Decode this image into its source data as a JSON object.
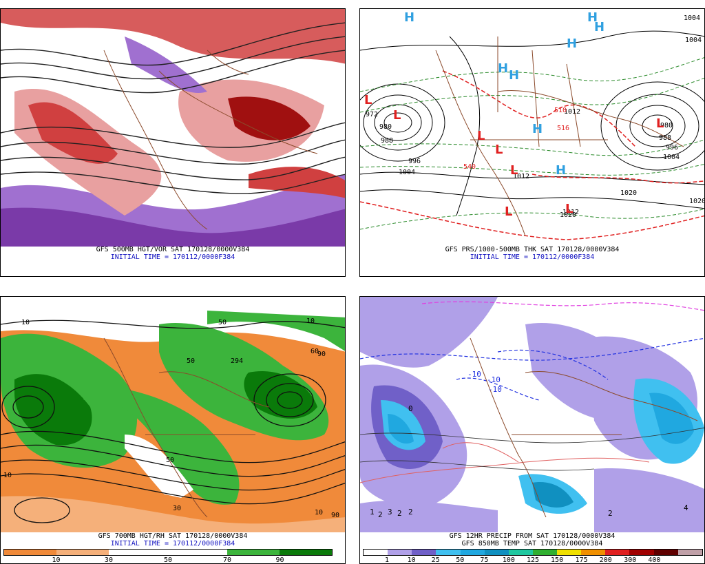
{
  "panels": {
    "vort": {
      "caption_line1": "GFS 500MB HGT/VOR SAT 170128/0000V384",
      "caption_line2": "INITIAL TIME = 170112/0000F384",
      "colors": [
        "#7a3aa8",
        "#a070d0",
        "#ffffff",
        "#e8a0a0",
        "#d04040",
        "#a01010"
      ]
    },
    "pressure": {
      "caption_line1": "GFS PRS/1000-500MB THK SAT 170128/0000V384",
      "caption_line2": "INITIAL TIME = 170112/0000F384",
      "labels": [
        "972",
        "980",
        "988",
        "996",
        "1004",
        "1012",
        "1020",
        "980",
        "988",
        "996",
        "1004",
        "1020",
        "1004",
        "1020",
        "1012",
        "1012",
        "510",
        "516",
        "540",
        "1004"
      ],
      "symbols": {
        "low": "L",
        "high": "H"
      }
    },
    "rh": {
      "caption_line1": "GFS 700MB HGT/RH SAT 170128/0000V384",
      "caption_line2": "INITIAL TIME = 170112/0000F384",
      "legend_colors": [
        "#f08a3a",
        "#f5b07a",
        "#ffffff",
        "#3cb43c",
        "#0a7a0a"
      ],
      "legend_ticks": [
        "10",
        "30",
        "50",
        "70",
        "90"
      ],
      "labels": [
        "10",
        "10",
        "50",
        "294",
        "50",
        "60",
        "10",
        "30",
        "50",
        "90",
        "90",
        "10"
      ]
    },
    "precip": {
      "caption_line1": "GFS 12HR PRECIP FROM SAT 170128/0000V384",
      "caption_line2": "GFS 850MB TEMP SAT 170128/0000V384",
      "legend_colors": [
        "#ffffff",
        "#b0a0e8",
        "#7060c8",
        "#40c0f0",
        "#20a8e0",
        "#1090c0",
        "#20c8a0",
        "#30b030",
        "#f0e000",
        "#f09000",
        "#e02020",
        "#a00000",
        "#600000",
        "#c0a0a8"
      ],
      "legend_ticks": [
        "1",
        "10",
        "25",
        "50",
        "75",
        "100",
        "125",
        "150",
        "175",
        "200",
        "300",
        "400"
      ],
      "labels": [
        "1",
        "2",
        "3",
        "2",
        "2",
        "-10",
        "-10",
        "-10",
        "0",
        "2",
        "4"
      ]
    }
  }
}
